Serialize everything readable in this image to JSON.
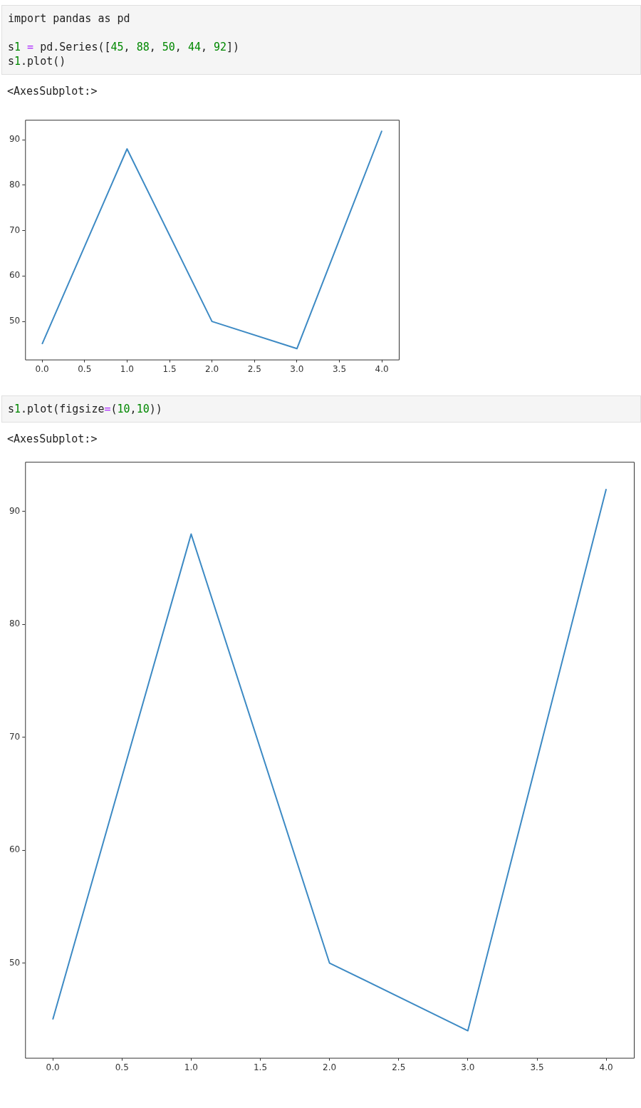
{
  "chart_data": [
    {
      "type": "line",
      "annotations": [
        "import pandas as pd\n\ns1 = pd.Series([45, 88, 50, 44, 92])\ns1.plot()",
        "<AxesSubplot:>"
      ],
      "x": [
        0,
        1,
        2,
        3,
        4
      ],
      "series": [
        {
          "color": "#3d8ac4",
          "values": [
            45,
            88,
            50,
            44,
            92
          ]
        }
      ],
      "xlim": [
        -0.2,
        4.2
      ],
      "xticks": [
        {
          "value": 0,
          "label": "0.0"
        },
        {
          "value": 0.5,
          "label": "0.5"
        },
        {
          "value": 1,
          "label": "1.0"
        },
        {
          "value": 1.5,
          "label": "1.5"
        },
        {
          "value": 2,
          "label": "2.0"
        },
        {
          "value": 2.5,
          "label": "2.5"
        },
        {
          "value": 3,
          "label": "3.0"
        },
        {
          "value": 3.5,
          "label": "3.5"
        },
        {
          "value": 4,
          "label": "4.0"
        }
      ],
      "ylim": [
        41.6,
        94.4
      ],
      "yticks": [
        50,
        60,
        70,
        80,
        90
      ],
      "grid": false,
      "legend": false,
      "marker": "none",
      "line_style": "solid"
    },
    {
      "type": "line",
      "annotations": [
        "s1.plot(figsize=(10,10))",
        "<AxesSubplot:>"
      ],
      "x": [
        0,
        1,
        2,
        3,
        4
      ],
      "series": [
        {
          "color": "#3d8ac4",
          "values": [
            45,
            88,
            50,
            44,
            92
          ]
        }
      ],
      "xlim": [
        -0.2,
        4.2
      ],
      "xticks": [
        {
          "value": 0,
          "label": "0.0"
        },
        {
          "value": 0.5,
          "label": "0.5"
        },
        {
          "value": 1,
          "label": "1.0"
        },
        {
          "value": 1.5,
          "label": "1.5"
        },
        {
          "value": 2,
          "label": "2.0"
        },
        {
          "value": 2.5,
          "label": "2.5"
        },
        {
          "value": 3,
          "label": "3.0"
        },
        {
          "value": 3.5,
          "label": "3.5"
        },
        {
          "value": 4,
          "label": "4.0"
        }
      ],
      "ylim": [
        41.6,
        94.4
      ],
      "yticks": [
        50,
        60,
        70,
        80,
        90
      ],
      "grid": false,
      "legend": false,
      "marker": "none",
      "line_style": "solid"
    }
  ]
}
